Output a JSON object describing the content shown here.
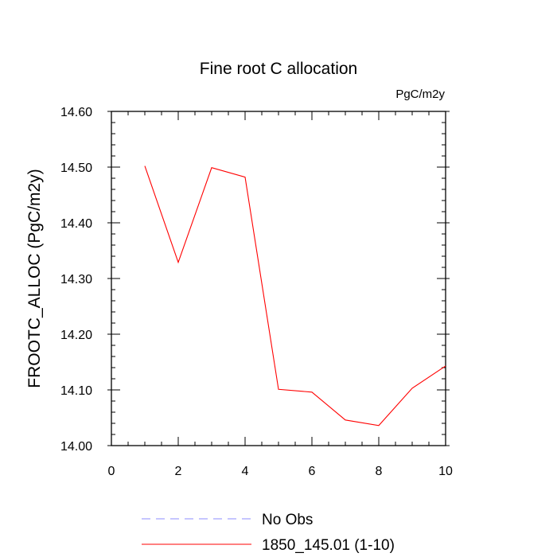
{
  "chart_data": {
    "type": "line",
    "title": "Fine root C allocation",
    "units_label": "PgC/m2y",
    "ylabel": "FROOTC_ALLOC  (PgC/m2y)",
    "xlabel": "",
    "xlim": [
      0,
      10
    ],
    "ylim": [
      14.0,
      14.6
    ],
    "xticks": [
      0,
      2,
      4,
      6,
      8,
      10
    ],
    "xtick_labels": [
      "0",
      "2",
      "4",
      "6",
      "8",
      "10"
    ],
    "yticks": [
      14.0,
      14.1,
      14.2,
      14.3,
      14.4,
      14.5,
      14.6
    ],
    "ytick_labels": [
      "14.00",
      "14.10",
      "14.20",
      "14.30",
      "14.40",
      "14.50",
      "14.60"
    ],
    "grid": false,
    "legend_position": "bottom",
    "legend": [
      {
        "label": "No Obs",
        "color": "#8c8cff",
        "style": "dashed"
      },
      {
        "label": "1850_145.01 (1-10)",
        "color": "#ff0000",
        "style": "solid"
      }
    ],
    "series": [
      {
        "name": "1850_145.01 (1-10)",
        "color": "#ff0000",
        "x": [
          1,
          2,
          3,
          4,
          5,
          6,
          7,
          8,
          9,
          10
        ],
        "y": [
          14.502,
          14.329,
          14.499,
          14.482,
          14.101,
          14.096,
          14.046,
          14.036,
          14.103,
          14.143
        ]
      }
    ]
  }
}
